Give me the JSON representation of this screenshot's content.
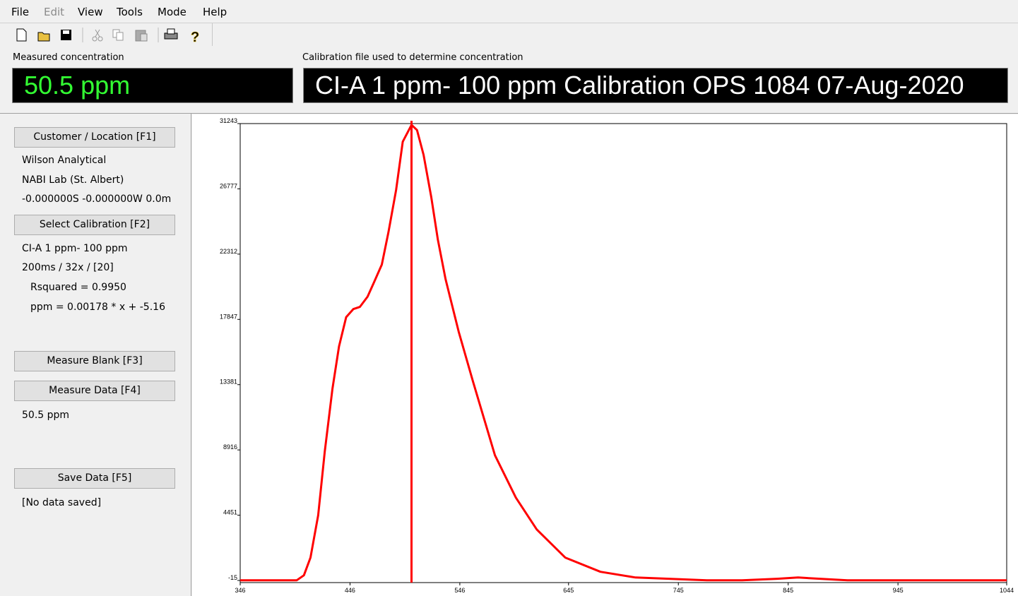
{
  "menu": [
    "File",
    "Edit",
    "View",
    "Tools",
    "Mode",
    "Help"
  ],
  "measured": {
    "label": "Measured concentration",
    "value": "50.5 ppm"
  },
  "calibration_file": {
    "label": "Calibration file used to determine concentration",
    "value": "CI-A 1 ppm- 100 ppm Calibration OPS 1084 07-Aug-2020"
  },
  "panel": {
    "customer": {
      "button": "Customer / Location [F1]",
      "lines": [
        "Wilson Analytical",
        "NABI Lab (St. Albert)",
        "-0.000000S -0.000000W 0.0m"
      ]
    },
    "calibration": {
      "button": "Select Calibration [F2]",
      "lines": [
        "CI-A 1 ppm- 100 ppm",
        "200ms / 32x / [20]",
        "Rsquared = 0.9950",
        "ppm = 0.00178 * x + -5.16"
      ]
    },
    "blank": {
      "button": "Measure Blank [F3]"
    },
    "measure": {
      "button": "Measure Data [F4]",
      "lines": [
        "50.5 ppm"
      ]
    },
    "save": {
      "button": "Save Data [F5]",
      "lines": [
        "[No data saved]"
      ]
    }
  },
  "chart_data": {
    "type": "line",
    "x": [
      346,
      390,
      397.5,
      404,
      410,
      417,
      423,
      430,
      436,
      442.5,
      449,
      455,
      462,
      468,
      475,
      481,
      488,
      494,
      502,
      507,
      513,
      520,
      526,
      533,
      545,
      558,
      578,
      597,
      616,
      642,
      674,
      706,
      771,
      803,
      835,
      854,
      874,
      899,
      1044
    ],
    "values": [
      0,
      0,
      0,
      340,
      1550,
      4450,
      8800,
      13100,
      16000,
      18000,
      18550,
      18700,
      19400,
      20400,
      21600,
      23800,
      26700,
      30000,
      31150,
      30800,
      29100,
      26200,
      23300,
      20600,
      17000,
      13600,
      8550,
      5650,
      3480,
      1550,
      580,
      190,
      0,
      0,
      100,
      190,
      100,
      0,
      0
    ],
    "color": "#ff0000",
    "marker_x": 502,
    "xlim": [
      346,
      1044
    ],
    "xticks": [
      346,
      446,
      546,
      645,
      745,
      845,
      945,
      1044
    ],
    "ylim": [
      -15,
      31243
    ],
    "yticks": [
      31243,
      26777,
      22312,
      17847,
      13381,
      8916,
      4451,
      -15
    ]
  }
}
